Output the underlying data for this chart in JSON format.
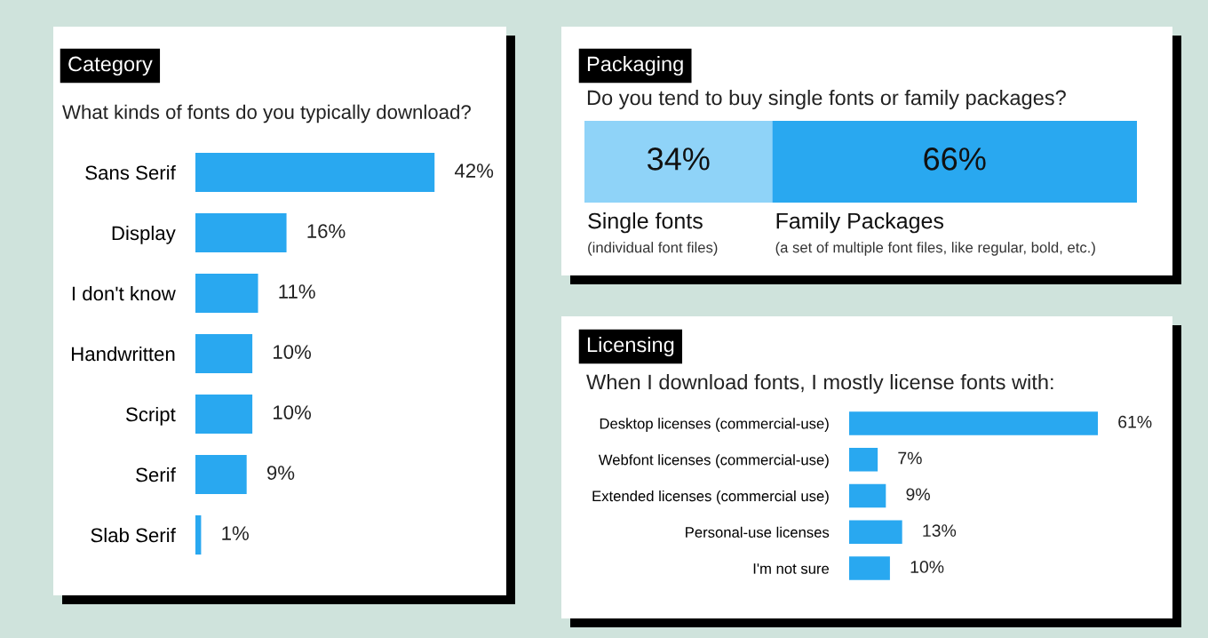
{
  "chart_data": [
    {
      "type": "bar",
      "orientation": "horizontal",
      "title": "Category",
      "subtitle": "What kinds of fonts do you typically download?",
      "categories": [
        "Sans Serif",
        "Display",
        "I don't know",
        "Handwritten",
        "Script",
        "Serif",
        "Slab Serif"
      ],
      "values": [
        42,
        16,
        11,
        10,
        10,
        9,
        1
      ],
      "value_labels": [
        "42%",
        "16%",
        "11%",
        "10%",
        "10%",
        "9%",
        "1%"
      ],
      "color": "#29a8f0"
    },
    {
      "type": "bar",
      "orientation": "horizontal",
      "stacked": true,
      "title": "Packaging",
      "subtitle": "Do you tend to buy single fonts or family packages?",
      "categories": [
        null
      ],
      "series": [
        {
          "name": "Single fonts",
          "color": "#8fd3f8",
          "values": [
            34
          ],
          "value_labels": [
            "34%"
          ]
        },
        {
          "name": "Family Packages",
          "color": "#29a8f0",
          "values": [
            66
          ],
          "value_labels": [
            "66%"
          ]
        }
      ],
      "annotations": [
        "(individual font files)",
        "(a set of multiple font files, like regular, bold, etc.)"
      ]
    },
    {
      "type": "bar",
      "orientation": "horizontal",
      "title": "Licensing",
      "subtitle": "When I download fonts, I mostly license fonts with:",
      "categories": [
        "Desktop licenses (commercial-use)",
        "Webfont licenses (commercial-use)",
        "Extended licenses (commercial use)",
        "Personal-use licenses",
        "I'm not sure"
      ],
      "values": [
        61,
        7,
        9,
        13,
        10
      ],
      "value_labels": [
        "61%",
        "7%",
        "9%",
        "13%",
        "10%"
      ],
      "color": "#29a8f0"
    }
  ]
}
